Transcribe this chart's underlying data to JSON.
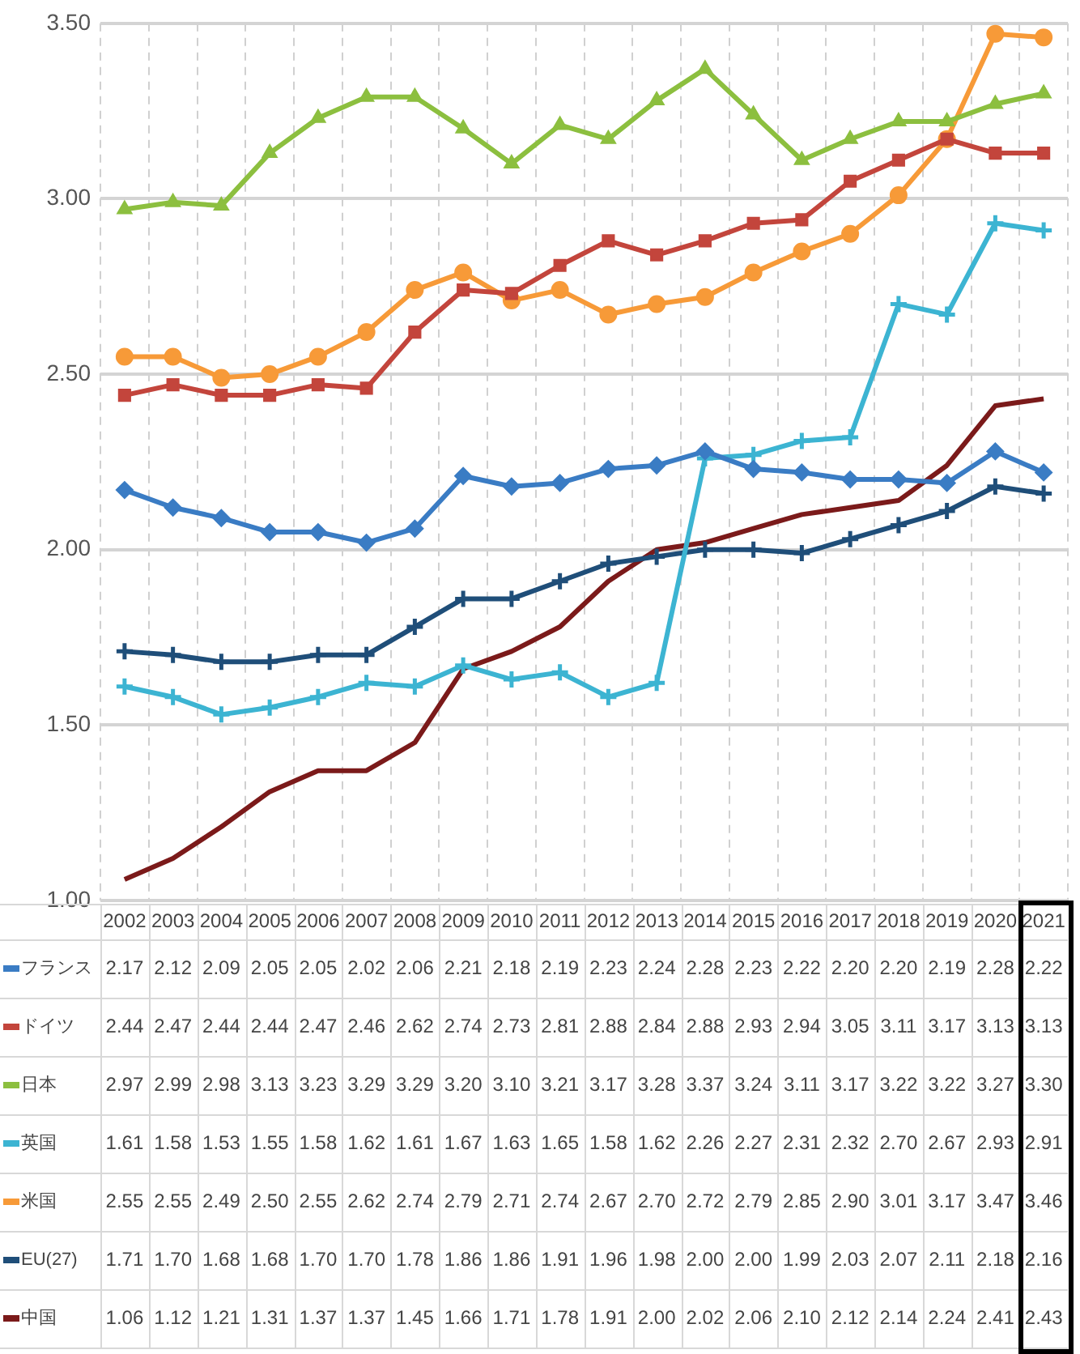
{
  "chart_data": {
    "type": "line",
    "categories": [
      "2002",
      "2003",
      "2004",
      "2005",
      "2006",
      "2007",
      "2008",
      "2009",
      "2010",
      "2011",
      "2012",
      "2013",
      "2014",
      "2015",
      "2016",
      "2017",
      "2018",
      "2019",
      "2020",
      "2021"
    ],
    "ylim": [
      1,
      3.5
    ],
    "yticks": [
      {
        "value": 1,
        "label": "1.00"
      },
      {
        "value": 1.5,
        "label": "1.50"
      },
      {
        "value": 2,
        "label": "2.00"
      },
      {
        "value": 2.5,
        "label": "2.50"
      },
      {
        "value": 3,
        "label": "3.00"
      },
      {
        "value": 3.5,
        "label": "3.50"
      }
    ],
    "grid": true,
    "legend": "bottom",
    "line_style": "solid",
    "series": [
      {
        "name": "フランス",
        "color": "#3a7cc4",
        "marker": "diamond",
        "values": [
          2.17,
          2.12,
          2.09,
          2.05,
          2.05,
          2.02,
          2.06,
          2.21,
          2.18,
          2.19,
          2.23,
          2.24,
          2.28,
          2.23,
          2.22,
          2.2,
          2.2,
          2.19,
          2.28,
          2.22
        ],
        "value_labels": [
          "2.17",
          "2.12",
          "2.09",
          "2.05",
          "2.05",
          "2.02",
          "2.06",
          "2.21",
          "2.18",
          "2.19",
          "2.23",
          "2.24",
          "2.28",
          "2.23",
          "2.22",
          "2.20",
          "2.20",
          "2.19",
          "2.28",
          "2.22"
        ]
      },
      {
        "name": "ドイツ",
        "color": "#c3453c",
        "marker": "square",
        "values": [
          2.44,
          2.47,
          2.44,
          2.44,
          2.47,
          2.46,
          2.62,
          2.74,
          2.73,
          2.81,
          2.88,
          2.84,
          2.88,
          2.93,
          2.94,
          3.05,
          3.11,
          3.17,
          3.13,
          3.13
        ],
        "value_labels": [
          "2.44",
          "2.47",
          "2.44",
          "2.44",
          "2.47",
          "2.46",
          "2.62",
          "2.74",
          "2.73",
          "2.81",
          "2.88",
          "2.84",
          "2.88",
          "2.93",
          "2.94",
          "3.05",
          "3.11",
          "3.17",
          "3.13",
          "3.13"
        ]
      },
      {
        "name": "日本",
        "color": "#8cbf3f",
        "marker": "triangle",
        "values": [
          2.97,
          2.99,
          2.98,
          3.13,
          3.23,
          3.29,
          3.29,
          3.2,
          3.1,
          3.21,
          3.17,
          3.28,
          3.37,
          3.24,
          3.11,
          3.17,
          3.22,
          3.22,
          3.27,
          3.3
        ],
        "value_labels": [
          "2.97",
          "2.99",
          "2.98",
          "3.13",
          "3.23",
          "3.29",
          "3.29",
          "3.20",
          "3.10",
          "3.21",
          "3.17",
          "3.28",
          "3.37",
          "3.24",
          "3.11",
          "3.17",
          "3.22",
          "3.22",
          "3.27",
          "3.30"
        ]
      },
      {
        "name": "英国",
        "color": "#3cb4d2",
        "marker": "cross",
        "values": [
          1.61,
          1.58,
          1.53,
          1.55,
          1.58,
          1.62,
          1.61,
          1.67,
          1.63,
          1.65,
          1.58,
          1.62,
          2.26,
          2.27,
          2.31,
          2.32,
          2.7,
          2.67,
          2.93,
          2.91
        ],
        "value_labels": [
          "1.61",
          "1.58",
          "1.53",
          "1.55",
          "1.58",
          "1.62",
          "1.61",
          "1.67",
          "1.63",
          "1.65",
          "1.58",
          "1.62",
          "2.26",
          "2.27",
          "2.31",
          "2.32",
          "2.70",
          "2.67",
          "2.93",
          "2.91"
        ]
      },
      {
        "name": "米国",
        "color": "#f79a38",
        "marker": "circle",
        "values": [
          2.55,
          2.55,
          2.49,
          2.5,
          2.55,
          2.62,
          2.74,
          2.79,
          2.71,
          2.74,
          2.67,
          2.7,
          2.72,
          2.79,
          2.85,
          2.9,
          3.01,
          3.17,
          3.47,
          3.46
        ],
        "value_labels": [
          "2.55",
          "2.55",
          "2.49",
          "2.50",
          "2.55",
          "2.62",
          "2.74",
          "2.79",
          "2.71",
          "2.74",
          "2.67",
          "2.70",
          "2.72",
          "2.79",
          "2.85",
          "2.90",
          "3.01",
          "3.17",
          "3.47",
          "3.46"
        ]
      },
      {
        "name": "EU(27)",
        "color": "#1f4e79",
        "marker": "cross",
        "values": [
          1.71,
          1.7,
          1.68,
          1.68,
          1.7,
          1.7,
          1.78,
          1.86,
          1.86,
          1.91,
          1.96,
          1.98,
          2.0,
          2.0,
          1.99,
          2.03,
          2.07,
          2.11,
          2.18,
          2.16
        ],
        "value_labels": [
          "1.71",
          "1.70",
          "1.68",
          "1.68",
          "1.70",
          "1.70",
          "1.78",
          "1.86",
          "1.86",
          "1.91",
          "1.96",
          "1.98",
          "2.00",
          "2.00",
          "1.99",
          "2.03",
          "2.07",
          "2.11",
          "2.18",
          "2.16"
        ]
      },
      {
        "name": "中国",
        "color": "#7b1a1a",
        "marker": "none",
        "values": [
          1.06,
          1.12,
          1.21,
          1.31,
          1.37,
          1.37,
          1.45,
          1.66,
          1.71,
          1.78,
          1.91,
          2.0,
          2.02,
          2.06,
          2.1,
          2.12,
          2.14,
          2.24,
          2.41,
          2.43
        ],
        "value_labels": [
          "1.06",
          "1.12",
          "1.21",
          "1.31",
          "1.37",
          "1.37",
          "1.45",
          "1.66",
          "1.71",
          "1.78",
          "1.91",
          "2.00",
          "2.02",
          "2.06",
          "2.10",
          "2.12",
          "2.14",
          "2.24",
          "2.41",
          "2.43"
        ]
      }
    ]
  }
}
